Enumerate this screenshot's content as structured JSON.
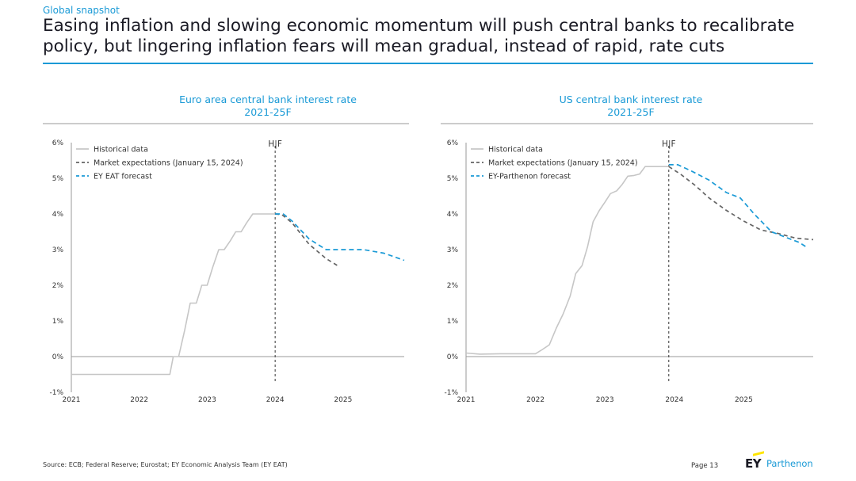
{
  "header": {
    "kicker": "Global snapshot",
    "headline_line1": "Easing inflation and slowing economic momentum will push central banks to recalibrate",
    "headline_line2": "policy, but lingering inflation fears will mean gradual, instead of rapid, rate cuts"
  },
  "footer": {
    "source": "Source: ECB; Federal Reserve; Eurostat; EY Economic Analysis Team (EY EAT)",
    "page": "Page 13",
    "logo_ey": "EY",
    "logo_partner": "Parthenon"
  },
  "colors": {
    "accent": "#1a9ad6",
    "historical": "#c6c6c6",
    "market": "#646464",
    "forecast": "#1a9ad6",
    "logo_yellow": "#ffe600"
  },
  "chart_data": [
    {
      "type": "line",
      "title": "Euro area central bank interest rate",
      "subtitle": "2021-25F",
      "y_ticks": [
        "6%",
        "5%",
        "4%",
        "3%",
        "2%",
        "1%",
        "0%",
        "-1%"
      ],
      "x_ticks": [
        "2021",
        "2022",
        "2023",
        "2024",
        "2025"
      ],
      "ylim": [
        -1,
        6
      ],
      "xlim": [
        2021,
        2025.9
      ],
      "grid": false,
      "legend_position": "top-left",
      "divider": {
        "x": 2024.0,
        "label": "H|F"
      },
      "series": [
        {
          "name": "Historical data",
          "style": "solid",
          "color": "#c6c6c6",
          "points": [
            [
              2021.0,
              -0.5
            ],
            [
              2022.4,
              -0.5
            ],
            [
              2022.45,
              -0.5
            ],
            [
              2022.5,
              0.0
            ],
            [
              2022.58,
              0.0
            ],
            [
              2022.67,
              0.75
            ],
            [
              2022.75,
              1.5
            ],
            [
              2022.84,
              1.5
            ],
            [
              2022.92,
              2.0
            ],
            [
              2023.0,
              2.0
            ],
            [
              2023.08,
              2.5
            ],
            [
              2023.17,
              3.0
            ],
            [
              2023.25,
              3.0
            ],
            [
              2023.34,
              3.25
            ],
            [
              2023.42,
              3.5
            ],
            [
              2023.5,
              3.5
            ],
            [
              2023.58,
              3.75
            ],
            [
              2023.67,
              4.0
            ],
            [
              2024.0,
              4.0
            ]
          ]
        },
        {
          "name": "Market expectations (January 15, 2024)",
          "style": "dashed",
          "color": "#646464",
          "points": [
            [
              2024.0,
              4.0
            ],
            [
              2024.1,
              3.98
            ],
            [
              2024.25,
              3.75
            ],
            [
              2024.5,
              3.15
            ],
            [
              2024.75,
              2.75
            ],
            [
              2024.92,
              2.55
            ]
          ]
        },
        {
          "name": "EY EAT forecast",
          "style": "dashed",
          "color": "#1a9ad6",
          "points": [
            [
              2024.0,
              4.0
            ],
            [
              2024.12,
              4.0
            ],
            [
              2024.25,
              3.8
            ],
            [
              2024.5,
              3.3
            ],
            [
              2024.75,
              3.0
            ],
            [
              2025.0,
              3.0
            ],
            [
              2025.3,
              3.0
            ],
            [
              2025.6,
              2.9
            ],
            [
              2025.9,
              2.7
            ]
          ]
        }
      ]
    },
    {
      "type": "line",
      "title": "US central bank interest rate",
      "subtitle": "2021-25F",
      "y_ticks": [
        "6%",
        "5%",
        "4%",
        "3%",
        "2%",
        "1%",
        "0%",
        "-1%"
      ],
      "x_ticks": [
        "2021",
        "2022",
        "2023",
        "2024",
        "2025"
      ],
      "ylim": [
        -1,
        6
      ],
      "xlim": [
        2021,
        2026.0
      ],
      "grid": false,
      "legend_position": "top-left",
      "divider": {
        "x": 2023.92,
        "label": "H|F"
      },
      "series": [
        {
          "name": "Historical data",
          "style": "solid",
          "color": "#c6c6c6",
          "points": [
            [
              2021.0,
              0.1
            ],
            [
              2021.2,
              0.07
            ],
            [
              2021.5,
              0.08
            ],
            [
              2021.75,
              0.08
            ],
            [
              2022.0,
              0.08
            ],
            [
              2022.1,
              0.2
            ],
            [
              2022.2,
              0.33
            ],
            [
              2022.3,
              0.8
            ],
            [
              2022.4,
              1.2
            ],
            [
              2022.5,
              1.7
            ],
            [
              2022.58,
              2.33
            ],
            [
              2022.67,
              2.55
            ],
            [
              2022.75,
              3.08
            ],
            [
              2022.83,
              3.78
            ],
            [
              2022.92,
              4.1
            ],
            [
              2023.0,
              4.33
            ],
            [
              2023.08,
              4.57
            ],
            [
              2023.17,
              4.65
            ],
            [
              2023.25,
              4.83
            ],
            [
              2023.33,
              5.06
            ],
            [
              2023.42,
              5.08
            ],
            [
              2023.5,
              5.12
            ],
            [
              2023.58,
              5.33
            ],
            [
              2023.92,
              5.33
            ]
          ]
        },
        {
          "name": "Market expectations (January 15, 2024)",
          "style": "dashed",
          "color": "#646464",
          "points": [
            [
              2023.92,
              5.33
            ],
            [
              2024.1,
              5.1
            ],
            [
              2024.3,
              4.8
            ],
            [
              2024.5,
              4.45
            ],
            [
              2024.75,
              4.1
            ],
            [
              2025.0,
              3.8
            ],
            [
              2025.25,
              3.55
            ],
            [
              2025.5,
              3.45
            ],
            [
              2025.75,
              3.32
            ],
            [
              2026.0,
              3.28
            ]
          ]
        },
        {
          "name": "EY-Parthenon forecast",
          "style": "dashed",
          "color": "#1a9ad6",
          "points": [
            [
              2023.92,
              5.38
            ],
            [
              2024.05,
              5.38
            ],
            [
              2024.25,
              5.2
            ],
            [
              2024.5,
              4.95
            ],
            [
              2024.75,
              4.6
            ],
            [
              2024.95,
              4.45
            ],
            [
              2025.15,
              4.0
            ],
            [
              2025.4,
              3.5
            ],
            [
              2025.6,
              3.35
            ],
            [
              2025.8,
              3.2
            ],
            [
              2025.92,
              3.05
            ]
          ]
        }
      ]
    }
  ]
}
